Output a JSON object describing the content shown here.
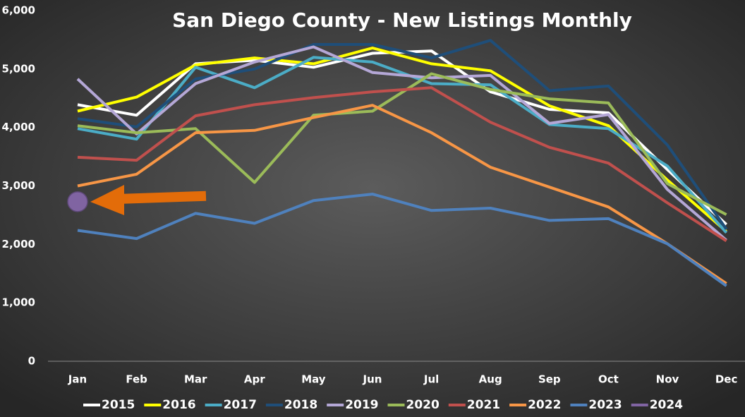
{
  "chart_data": {
    "type": "line",
    "title": "San Diego County - New Listings Monthly",
    "categories": [
      "Jan",
      "Feb",
      "Mar",
      "Apr",
      "May",
      "Jun",
      "Jul",
      "Aug",
      "Sep",
      "Oct",
      "Nov",
      "Dec"
    ],
    "ylim": [
      0,
      6000
    ],
    "yticks": [
      0,
      {
        "value": 1000,
        "label": "1,000"
      },
      {
        "value": 2000,
        "label": "2,000"
      },
      {
        "value": 3000,
        "label": "3,000"
      },
      {
        "value": 4000,
        "label": "4,000"
      },
      {
        "value": 5000,
        "label": "5,000"
      },
      {
        "value": 6000,
        "label": "6,000"
      }
    ],
    "grid": false,
    "legend": "bottom",
    "series": [
      {
        "name": "2015",
        "color": "#ffffff",
        "values": [
          4390,
          4210,
          5090,
          5150,
          5030,
          5270,
          5310,
          4610,
          4310,
          4250,
          3280,
          2340
        ]
      },
      {
        "name": "2016",
        "color": "#ffff00",
        "values": [
          4280,
          4520,
          5070,
          5190,
          5090,
          5360,
          5090,
          4970,
          4370,
          4030,
          3100,
          2220
        ]
      },
      {
        "name": "2017",
        "color": "#4bacc6",
        "values": [
          3980,
          3800,
          5030,
          4680,
          5200,
          5120,
          4750,
          4730,
          4050,
          3980,
          3340,
          2200
        ]
      },
      {
        "name": "2018",
        "color": "#1f4e79",
        "values": [
          4150,
          4010,
          4830,
          5000,
          5420,
          5420,
          5190,
          5490,
          4630,
          4710,
          3700,
          2260
        ]
      },
      {
        "name": "2019",
        "color": "#b4a7d6",
        "values": [
          4830,
          3890,
          4750,
          5120,
          5380,
          4940,
          4850,
          4890,
          4070,
          4220,
          2940,
          2070
        ]
      },
      {
        "name": "2020",
        "color": "#9bbb59",
        "values": [
          4030,
          3910,
          3980,
          3060,
          4210,
          4280,
          4920,
          4650,
          4490,
          4420,
          3040,
          2510
        ]
      },
      {
        "name": "2021",
        "color": "#c0504d",
        "values": [
          3490,
          3440,
          4200,
          4390,
          4510,
          4610,
          4680,
          4090,
          3660,
          3390,
          2710,
          2060
        ]
      },
      {
        "name": "2022",
        "color": "#f79646",
        "values": [
          3000,
          3200,
          3910,
          3950,
          4170,
          4380,
          3910,
          3320,
          2980,
          2640,
          2010,
          1330
        ]
      },
      {
        "name": "2023",
        "color": "#4f81bd",
        "values": [
          2240,
          2100,
          2530,
          2360,
          2750,
          2860,
          2580,
          2620,
          2410,
          2440,
          2010,
          1290
        ]
      },
      {
        "name": "2024",
        "color": "#8064a2",
        "values": [
          2730,
          null,
          null,
          null,
          null,
          null,
          null,
          null,
          null,
          null,
          null,
          null
        ]
      }
    ]
  }
}
